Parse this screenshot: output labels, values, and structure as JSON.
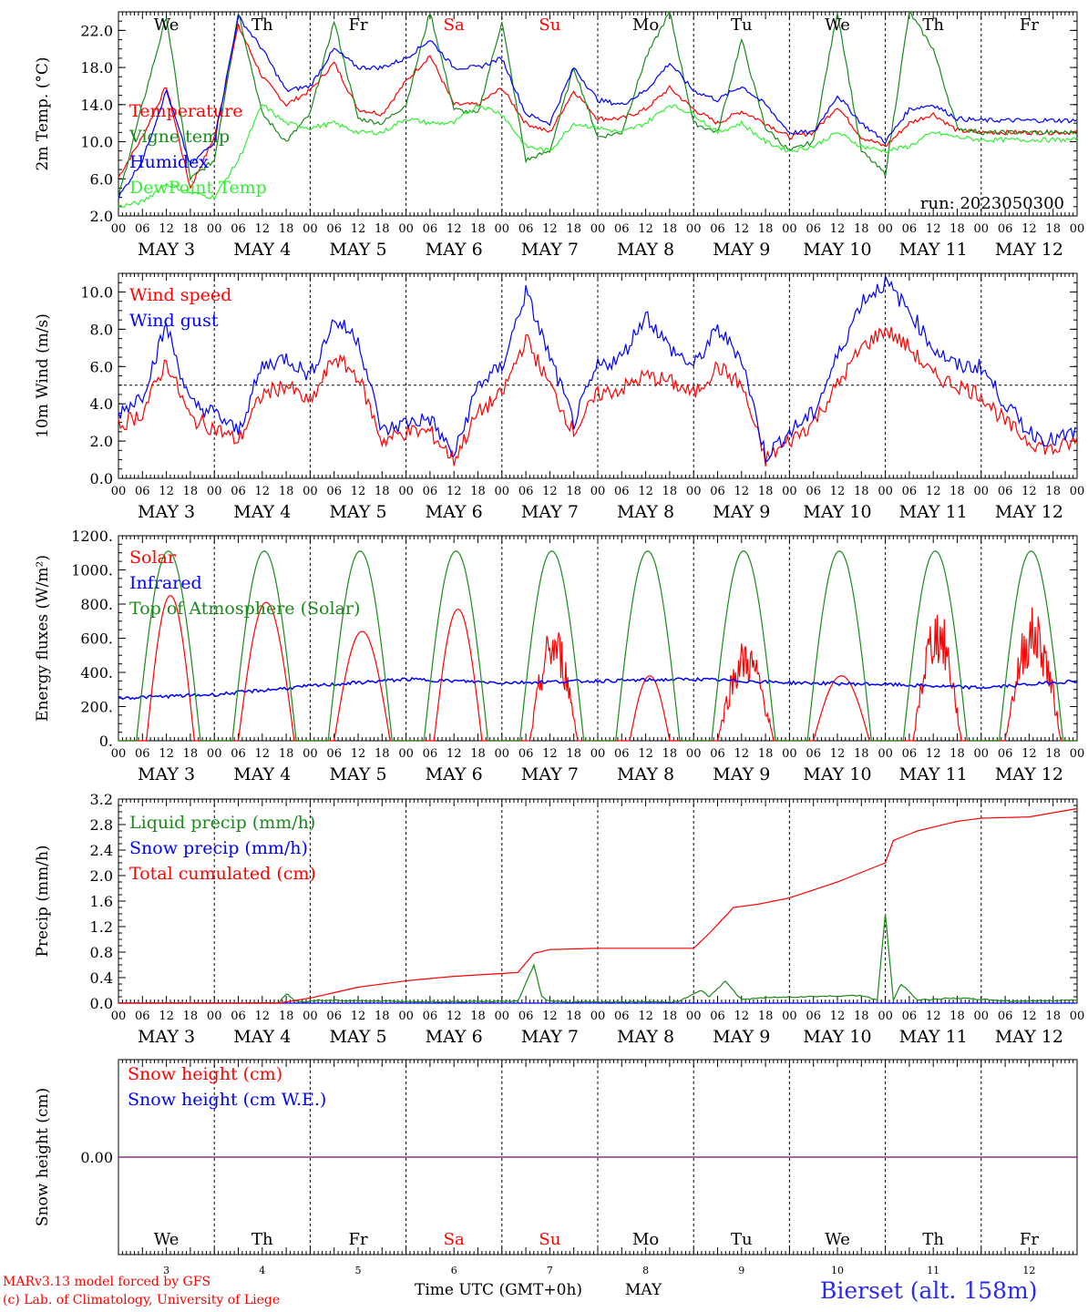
{
  "chart_data": [
    {
      "type": "line",
      "ylabel": "2m Temp. (°C)",
      "ylim": [
        2.0,
        24.0
      ],
      "yticks": [
        "2.0",
        "6.0",
        "10.0",
        "14.0",
        "18.0",
        "22.0"
      ],
      "ytick_values": [
        2,
        6,
        10,
        14,
        18,
        22
      ],
      "run_label": "run: 2023050300",
      "series": [
        {
          "name": "Temperature",
          "color": "#ff0000",
          "x": [
            0,
            6,
            12,
            18,
            24,
            30,
            36,
            42,
            48,
            54,
            60,
            66,
            72,
            78,
            84,
            90,
            96,
            102,
            108,
            114,
            120,
            126,
            132,
            138,
            144,
            150,
            156,
            162,
            168,
            174,
            180,
            186,
            192,
            198,
            204,
            210,
            216,
            222,
            228,
            234,
            240
          ],
          "y": [
            6.2,
            10.5,
            16.0,
            5.0,
            10.5,
            22.5,
            17.0,
            14.0,
            15.5,
            18.5,
            13.5,
            13.0,
            16.5,
            19.3,
            14.0,
            14.0,
            15.8,
            12.0,
            11.0,
            15.5,
            12.5,
            12.5,
            13.5,
            15.8,
            13.5,
            12.0,
            13.3,
            12.0,
            10.5,
            11.0,
            13.8,
            10.5,
            9.5,
            12.0,
            13.0,
            11.2,
            11.0,
            11.0,
            11.0,
            11.0,
            11.0
          ]
        },
        {
          "name": "Vigne temp",
          "color": "#1a8a1a",
          "x": [
            0,
            6,
            12,
            18,
            24,
            30,
            36,
            42,
            48,
            54,
            60,
            66,
            72,
            78,
            84,
            90,
            96,
            102,
            108,
            114,
            120,
            126,
            132,
            138,
            144,
            150,
            156,
            162,
            168,
            174,
            180,
            186,
            192,
            198,
            204,
            210,
            216,
            222,
            228,
            234,
            240
          ],
          "y": [
            4.0,
            14.0,
            23.5,
            6.0,
            8.0,
            24.0,
            13.0,
            10.0,
            13.0,
            23.0,
            12.5,
            12.0,
            14.0,
            24.0,
            13.5,
            13.0,
            23.0,
            8.0,
            9.0,
            18.0,
            10.5,
            11.0,
            19.0,
            24.0,
            12.0,
            11.0,
            21.0,
            11.5,
            9.0,
            10.0,
            24.0,
            9.0,
            6.5,
            24.0,
            20.0,
            11.5,
            11.0,
            11.0,
            11.0,
            11.0,
            11.0
          ]
        },
        {
          "name": "Humidex",
          "color": "#0000ff",
          "x": [
            0,
            6,
            12,
            18,
            24,
            30,
            36,
            42,
            48,
            54,
            60,
            66,
            72,
            78,
            84,
            90,
            96,
            102,
            108,
            114,
            120,
            126,
            132,
            138,
            144,
            150,
            156,
            162,
            168,
            174,
            180,
            186,
            192,
            198,
            204,
            210,
            216,
            222,
            228,
            234,
            240
          ],
          "y": [
            4.0,
            8.0,
            15.5,
            7.5,
            10.0,
            23.5,
            20.0,
            15.5,
            16.0,
            20.0,
            18.0,
            18.0,
            19.0,
            21.0,
            18.0,
            18.0,
            19.0,
            13.0,
            12.0,
            18.0,
            14.5,
            14.0,
            15.5,
            18.5,
            15.5,
            14.5,
            16.0,
            14.0,
            11.0,
            11.0,
            15.0,
            12.0,
            10.0,
            13.5,
            14.0,
            12.5,
            12.3,
            12.3,
            12.3,
            12.3,
            12.3
          ]
        },
        {
          "name": "DewPoint Temp",
          "color": "#33ee33",
          "x": [
            0,
            6,
            12,
            18,
            24,
            30,
            36,
            42,
            48,
            54,
            60,
            66,
            72,
            78,
            84,
            90,
            96,
            102,
            108,
            114,
            120,
            126,
            132,
            138,
            144,
            150,
            156,
            162,
            168,
            174,
            180,
            186,
            192,
            198,
            204,
            210,
            216,
            222,
            228,
            234,
            240
          ],
          "y": [
            3.0,
            3.5,
            5.5,
            4.5,
            4.0,
            8.0,
            14.0,
            12.0,
            11.5,
            12.0,
            11.0,
            11.0,
            12.5,
            12.0,
            12.0,
            14.0,
            13.0,
            9.5,
            9.0,
            12.0,
            11.5,
            11.0,
            12.0,
            14.0,
            13.0,
            11.0,
            12.0,
            10.0,
            9.0,
            9.5,
            11.0,
            9.5,
            9.0,
            9.5,
            11.0,
            10.5,
            10.2,
            10.2,
            10.2,
            10.2,
            10.2
          ]
        }
      ]
    },
    {
      "type": "line",
      "ylabel": "10m Wind (m/s)",
      "ylim": [
        0.0,
        11.0
      ],
      "yticks": [
        "0.0",
        "2.0",
        "4.0",
        "6.0",
        "8.0",
        "10.0"
      ],
      "ytick_values": [
        0,
        2,
        4,
        6,
        8,
        10
      ],
      "reference_line": 5.0,
      "series": [
        {
          "name": "Wind speed",
          "color": "#ff0000",
          "x": [
            0,
            6,
            12,
            18,
            24,
            30,
            36,
            42,
            48,
            54,
            60,
            66,
            72,
            78,
            84,
            90,
            96,
            102,
            108,
            114,
            120,
            126,
            132,
            138,
            144,
            150,
            156,
            162,
            168,
            174,
            180,
            186,
            192,
            198,
            204,
            210,
            216,
            222,
            228,
            234,
            240
          ],
          "y": [
            2.8,
            3.5,
            6.3,
            3.2,
            2.7,
            2.0,
            4.5,
            5.0,
            4.0,
            6.5,
            5.5,
            2.0,
            2.5,
            2.5,
            1.0,
            3.5,
            4.5,
            7.5,
            5.0,
            2.5,
            4.5,
            4.8,
            5.5,
            5.2,
            4.5,
            6.0,
            5.0,
            1.0,
            2.0,
            3.0,
            5.0,
            7.0,
            8.0,
            7.0,
            5.5,
            5.0,
            4.5,
            3.0,
            2.0,
            1.5,
            2.0
          ]
        },
        {
          "name": "Wind gust",
          "color": "#0000ff",
          "x": [
            0,
            6,
            12,
            18,
            24,
            30,
            36,
            42,
            48,
            54,
            60,
            66,
            72,
            78,
            84,
            90,
            96,
            102,
            108,
            114,
            120,
            126,
            132,
            138,
            144,
            150,
            156,
            162,
            168,
            174,
            180,
            186,
            192,
            198,
            204,
            210,
            216,
            222,
            228,
            234,
            240
          ],
          "y": [
            3.5,
            4.5,
            8.2,
            4.0,
            3.5,
            2.5,
            6.0,
            6.5,
            5.5,
            8.5,
            7.5,
            2.5,
            3.0,
            3.2,
            1.2,
            5.0,
            6.0,
            10.0,
            6.5,
            3.0,
            6.0,
            6.5,
            8.8,
            7.0,
            6.0,
            8.0,
            6.5,
            1.2,
            2.5,
            3.5,
            6.5,
            9.5,
            10.5,
            9.0,
            7.0,
            6.0,
            6.0,
            4.0,
            2.5,
            2.0,
            2.5
          ]
        }
      ]
    },
    {
      "type": "line",
      "ylabel": "Energy fluxes (W/m²)",
      "ylim": [
        0,
        1200
      ],
      "yticks": [
        "0.",
        "200.",
        "400.",
        "600.",
        "800.",
        "1000.",
        "1200."
      ],
      "ytick_values": [
        0,
        200,
        400,
        600,
        800,
        1000,
        1200
      ],
      "series": [
        {
          "name": "Solar",
          "color": "#ff0000",
          "daily_peak_hour": 13,
          "daily_peaks": [
            850,
            810,
            640,
            770,
            700,
            380,
            600,
            380,
            800,
            790
          ],
          "daily_halfwidth_h": [
            6,
            7,
            7,
            6,
            6,
            5,
            7,
            7,
            6,
            7
          ]
        },
        {
          "name": "Infrared",
          "color": "#0000ff",
          "x": [
            0,
            24,
            48,
            72,
            96,
            120,
            144,
            168,
            192,
            216,
            240
          ],
          "y": [
            250,
            270,
            320,
            360,
            340,
            350,
            360,
            340,
            330,
            310,
            350
          ]
        },
        {
          "name": "Top of Atmosphere (Solar)",
          "color": "#1a8a1a",
          "daily_peak_hour": 12.5,
          "daily_peak": 1110,
          "daily_halfwidth_h": 8
        }
      ]
    },
    {
      "type": "line",
      "ylabel": "Precip (mm/h)",
      "ylim": [
        0.0,
        3.2
      ],
      "yticks": [
        "0.0",
        "0.4",
        "0.8",
        "1.2",
        "1.6",
        "2.0",
        "2.4",
        "2.8",
        "3.2"
      ],
      "ytick_values": [
        0,
        0.4,
        0.8,
        1.2,
        1.6,
        2.0,
        2.4,
        2.8,
        3.2
      ],
      "series": [
        {
          "name": "Liquid precip (mm/h)",
          "color": "#1a8a1a",
          "x": [
            0,
            40,
            42,
            44,
            46,
            50,
            80,
            100,
            104,
            106,
            108,
            112,
            140,
            146,
            148,
            152,
            156,
            160,
            170,
            186,
            190,
            192,
            194,
            196,
            200,
            210,
            224,
            240
          ],
          "y": [
            0,
            0,
            0.15,
            0.05,
            0.02,
            0.05,
            0.02,
            0.03,
            0.6,
            0.1,
            0.03,
            0.02,
            0.02,
            0.2,
            0.1,
            0.35,
            0.05,
            0.08,
            0.1,
            0.12,
            0.05,
            1.4,
            0.05,
            0.3,
            0.05,
            0.08,
            0.03,
            0.05
          ]
        },
        {
          "name": "Snow precip (mm/h)",
          "color": "#0000ff",
          "x": [
            0,
            240
          ],
          "y": [
            0,
            0
          ]
        },
        {
          "name": "Total cumulated (cm)",
          "color": "#ff0000",
          "x": [
            0,
            40,
            48,
            60,
            72,
            84,
            100,
            104,
            108,
            120,
            132,
            144,
            148,
            154,
            160,
            168,
            180,
            192,
            194,
            200,
            210,
            216,
            228,
            240
          ],
          "y": [
            0,
            0,
            0.08,
            0.25,
            0.35,
            0.42,
            0.48,
            0.78,
            0.84,
            0.86,
            0.86,
            0.86,
            1.1,
            1.5,
            1.55,
            1.65,
            1.9,
            2.2,
            2.55,
            2.7,
            2.85,
            2.9,
            2.92,
            3.05
          ]
        }
      ]
    },
    {
      "type": "line",
      "ylabel": "Snow height (cm)",
      "ylim": [
        -1,
        1
      ],
      "yticks": [
        "0.00"
      ],
      "ytick_values": [
        0
      ],
      "series": [
        {
          "name": "Snow height (cm)",
          "color": "#ff0000",
          "x": [
            0,
            240
          ],
          "y": [
            0,
            0
          ]
        },
        {
          "name": "Snow height (cm W.E.)",
          "color": "#0000ff",
          "x": [
            0,
            240
          ],
          "y": [
            0,
            0
          ]
        }
      ],
      "overlap_color": "#7a2a9a"
    }
  ],
  "time_axis": {
    "hour_labels": [
      "00",
      "06",
      "12",
      "18"
    ],
    "final_label": "00",
    "dates": [
      "MAY  3",
      "MAY  4",
      "MAY  5",
      "MAY  6",
      "MAY  7",
      "MAY  8",
      "MAY  9",
      "MAY 10",
      "MAY 11",
      "MAY 12"
    ],
    "weekdays": [
      "We",
      "Th",
      "Fr",
      "Sa",
      "Su",
      "Mo",
      "Tu",
      "We",
      "Th",
      "Fr"
    ],
    "weekday_colors": [
      "#000000",
      "#000000",
      "#000000",
      "#ff0000",
      "#ff0000",
      "#000000",
      "#000000",
      "#000000",
      "#000000",
      "#000000"
    ],
    "day_numbers": [
      "3",
      "4",
      "5",
      "6",
      "7",
      "8",
      "9",
      "10",
      "11",
      "12"
    ],
    "bottom_title": "Time UTC (GMT+0h)",
    "bottom_month": "MAY"
  },
  "footer": {
    "model_line": "MARv3.13 model forced by GFS",
    "copyright_line": "(c) Lab. of Climatology, University of Liege",
    "station": "Bierset (alt. 158m)",
    "station_color": "#2a2aee"
  }
}
